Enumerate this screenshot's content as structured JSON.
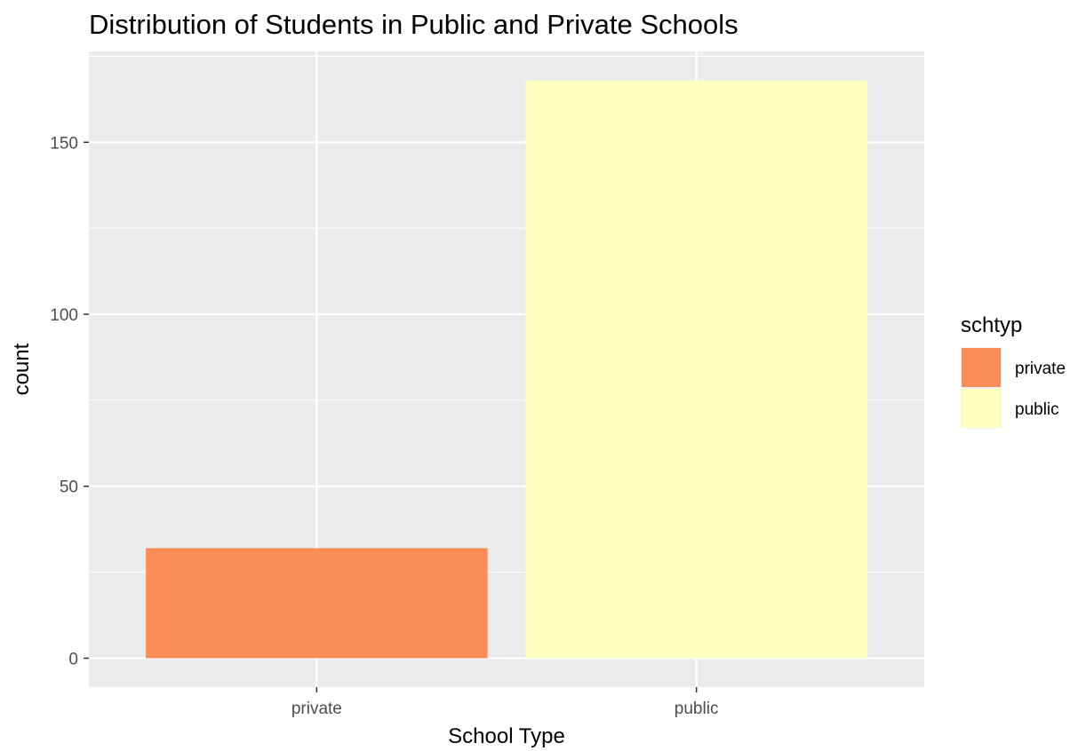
{
  "chart_data": {
    "type": "bar",
    "title": "Distribution of Students in Public and Private Schools",
    "xlabel": "School Type",
    "ylabel": "count",
    "categories": [
      "private",
      "public"
    ],
    "values": [
      32,
      168
    ],
    "colors": [
      "#fc8d59",
      "#ffffbf"
    ],
    "yticks": [
      0,
      50,
      100,
      150
    ],
    "ylim": [
      -8.4,
      176.4
    ],
    "grid": true,
    "panel_background": "#ebebeb",
    "legend": {
      "title": "schtyp",
      "position": "right",
      "entries": [
        "private",
        "public"
      ]
    }
  }
}
